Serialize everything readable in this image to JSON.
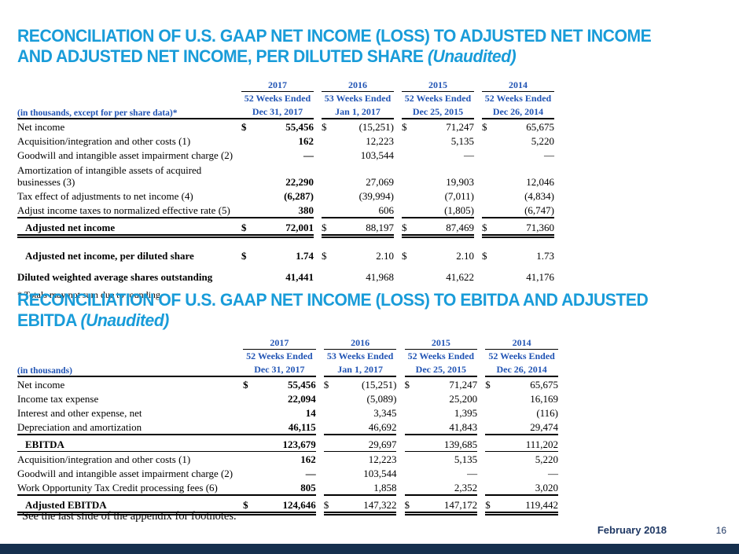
{
  "colors": {
    "title": "#199CD9",
    "headerBlue": "#2154B4",
    "navy": "#1F3864",
    "bar": "#16304E"
  },
  "titles": {
    "t1_line1": "RECONCILIATION OF U.S. GAAP NET INCOME (LOSS) TO ADJUSTED NET INCOME",
    "t1_line2": "AND ADJUSTED NET INCOME, PER DILUTED SHARE",
    "t1_suffix": "(Unaudited)",
    "t2_line1": "RECONCILIATION OF U.S. GAAP NET INCOME (LOSS) TO EBITDA AND ADJUSTED",
    "t2_line2": "EBITDA",
    "t2_suffix": "(Unaudited)"
  },
  "table1": {
    "unit_label": "(in thousands, except for per share data)*",
    "columns": [
      {
        "year": "2017",
        "weeks": "52 Weeks Ended",
        "date": "Dec 31, 2017"
      },
      {
        "year": "2016",
        "weeks": "53 Weeks Ended",
        "date": "Jan 1, 2017"
      },
      {
        "year": "2015",
        "weeks": "52 Weeks Ended",
        "date": "Dec 25, 2015"
      },
      {
        "year": "2014",
        "weeks": "52 Weeks Ended",
        "date": "Dec 26, 2014"
      }
    ],
    "rows": [
      {
        "label": "Net income",
        "ds": "$",
        "v": [
          "55,456",
          "(15,251)",
          "71,247",
          "65,675"
        ]
      },
      {
        "label": "Acquisition/integration and other costs (1)",
        "v": [
          "162",
          "12,223",
          "5,135",
          "5,220"
        ]
      },
      {
        "label": "Goodwill and intangible asset impairment charge (2)",
        "v": [
          "—",
          "103,544",
          "—",
          "—"
        ]
      },
      {
        "label": "Amortization of intangible assets of acquired businesses (3)",
        "v": [
          "22,290",
          "27,069",
          "19,903",
          "12,046"
        ]
      },
      {
        "label": "Tax effect of adjustments to net income (4)",
        "v": [
          "(6,287)",
          "(39,994)",
          "(7,011)",
          "(4,834)"
        ]
      },
      {
        "label": "Adjust income taxes to normalized effective rate (5)",
        "v": [
          "380",
          "606",
          "(1,805)",
          "(6,747)"
        ]
      },
      {
        "label": "Adjusted net income",
        "ds": "$",
        "v": [
          "72,001",
          "88,197",
          "87,469",
          "71,360"
        ]
      },
      {
        "label": "Adjusted net income, per diluted share",
        "ds": "$",
        "v": [
          "1.74",
          "2.10",
          "2.10",
          "1.73"
        ]
      },
      {
        "label": "Diluted weighted average shares outstanding",
        "v": [
          "41,441",
          "41,968",
          "41,622",
          "41,176"
        ]
      }
    ],
    "footnote": "* Totals may not sum due to rounding"
  },
  "table2": {
    "unit_label": "(in thousands)",
    "columns": [
      {
        "year": "2017",
        "weeks": "52 Weeks Ended",
        "date": "Dec 31, 2017"
      },
      {
        "year": "2016",
        "weeks": "53 Weeks Ended",
        "date": "Jan 1, 2017"
      },
      {
        "year": "2015",
        "weeks": "52 Weeks Ended",
        "date": "Dec 25, 2015"
      },
      {
        "year": "2014",
        "weeks": "52 Weeks Ended",
        "date": "Dec 26, 2014"
      }
    ],
    "rows": [
      {
        "label": "Net income",
        "ds": "$",
        "v": [
          "55,456",
          "(15,251)",
          "71,247",
          "65,675"
        ]
      },
      {
        "label": "Income tax expense",
        "v": [
          "22,094",
          "(5,089)",
          "25,200",
          "16,169"
        ]
      },
      {
        "label": "Interest and other expense, net",
        "v": [
          "14",
          "3,345",
          "1,395",
          "(116)"
        ]
      },
      {
        "label": "Depreciation and amortization",
        "v": [
          "46,115",
          "46,692",
          "41,843",
          "29,474"
        ]
      },
      {
        "label": "EBITDA",
        "v": [
          "123,679",
          "29,697",
          "139,685",
          "111,202"
        ]
      },
      {
        "label": "Acquisition/integration and other costs (1)",
        "v": [
          "162",
          "12,223",
          "5,135",
          "5,220"
        ]
      },
      {
        "label": "Goodwill and intangible asset impairment charge (2)",
        "v": [
          "—",
          "103,544",
          "—",
          "—"
        ]
      },
      {
        "label": "Work Opportunity Tax Credit processing fees (6)",
        "v": [
          "805",
          "1,858",
          "2,352",
          "3,020"
        ]
      },
      {
        "label": "Adjusted EBITDA",
        "ds": "$",
        "v": [
          "124,646",
          "147,322",
          "147,172",
          "119,442"
        ]
      }
    ]
  },
  "notes": {
    "appendix": "See the last slide of the appendix for footnotes."
  },
  "footer": {
    "date": "February 2018",
    "page": "16"
  }
}
